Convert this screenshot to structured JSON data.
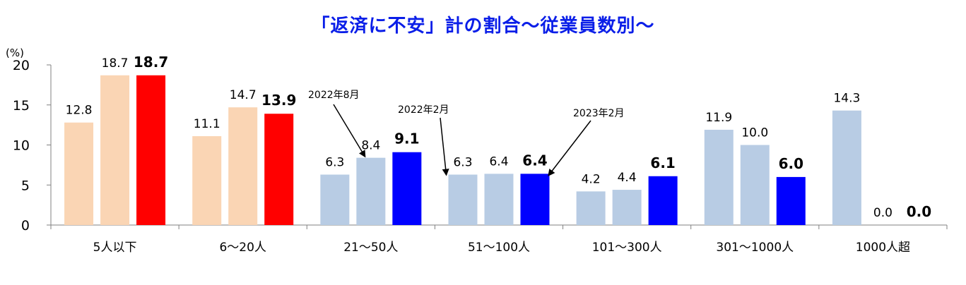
{
  "chart_data": {
    "type": "bar",
    "title": "「返済に不安」計の割合〜従業員数別〜",
    "ylabel": "(%)",
    "ylim": [
      0,
      20
    ],
    "yticks": [
      0,
      5,
      10,
      15,
      20
    ],
    "categories": [
      "5人以下",
      "6〜20人",
      "21〜50人",
      "51〜100人",
      "101〜300人",
      "301〜1000人",
      "1000人超"
    ],
    "series": [
      {
        "name": "2022年8月",
        "values": [
          12.8,
          11.1,
          6.3,
          6.3,
          4.2,
          11.9,
          14.3
        ]
      },
      {
        "name": "2022年2月",
        "values": [
          18.7,
          14.7,
          8.4,
          6.4,
          4.4,
          10.0,
          0.0
        ]
      },
      {
        "name": "2023年2月",
        "values": [
          18.7,
          13.9,
          9.1,
          6.4,
          6.1,
          6.0,
          0.0
        ]
      }
    ],
    "value_labels": [
      [
        "12.8",
        "18.7",
        "18.7"
      ],
      [
        "11.1",
        "14.7",
        "13.9"
      ],
      [
        "6.3",
        "8.4",
        "9.1"
      ],
      [
        "6.3",
        "6.4",
        "6.4"
      ],
      [
        "4.2",
        "4.4",
        "6.1"
      ],
      [
        "11.9",
        "10.0",
        "6.0"
      ],
      [
        "14.3",
        "0.0",
        "0.0"
      ]
    ],
    "colors": {
      "group_a": [
        "#fad5b4",
        "#fad5b4",
        "#ff0000"
      ],
      "group_b": [
        "#b8cce4",
        "#b8cce4",
        "#0000ff"
      ]
    },
    "grid": false,
    "legend": "none"
  }
}
